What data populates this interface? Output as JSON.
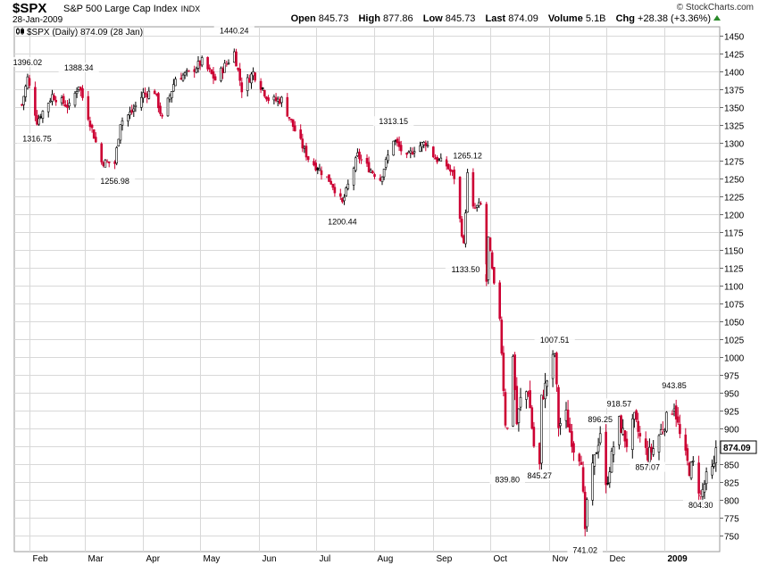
{
  "header": {
    "symbol": "$SPX",
    "description": "S&P 500 Large Cap Index",
    "exchange": "INDX",
    "brand": "© StockCharts.com",
    "date": "28-Jan-2009",
    "open_label": "Open",
    "open": "845.73",
    "high_label": "High",
    "high": "877.86",
    "low_label": "Low",
    "low": "845.73",
    "last_label": "Last",
    "last": "874.09",
    "volume_label": "Volume",
    "volume": "5.1B",
    "chg_label": "Chg",
    "chg": "+28.38 (+3.36%)"
  },
  "legend": "$SPX (Daily) 874.09 (28 Jan)",
  "colors": {
    "up": "#000000",
    "down": "#cc0033",
    "grid": "#d8d8d8",
    "last_box": "#000000"
  },
  "chart_data": {
    "type": "candlestick",
    "x_labels": [
      "Feb",
      "Mar",
      "Apr",
      "May",
      "Jun",
      "Jul",
      "Aug",
      "Sep",
      "Oct",
      "Nov",
      "Dec",
      "2009"
    ],
    "y_ticks": [
      750,
      775,
      800,
      825,
      850,
      875,
      900,
      925,
      950,
      975,
      1000,
      1025,
      1050,
      1075,
      1100,
      1125,
      1150,
      1175,
      1200,
      1225,
      1250,
      1275,
      1300,
      1325,
      1350,
      1375,
      1400,
      1425,
      1450
    ],
    "ylim": [
      728,
      1462
    ],
    "last_value": "874.09",
    "grid": true,
    "annotations": [
      {
        "text": "1396.02",
        "date": "2008-01-31",
        "value": 1396.02,
        "pos": "above"
      },
      {
        "text": "1316.75",
        "date": "2008-02-05",
        "value": 1316.75,
        "pos": "below"
      },
      {
        "text": "1388.34",
        "date": "2008-02-27",
        "value": 1388.34,
        "pos": "above"
      },
      {
        "text": "1256.98",
        "date": "2008-03-17",
        "value": 1256.98,
        "pos": "below"
      },
      {
        "text": "1440.24",
        "date": "2008-05-19",
        "value": 1440.24,
        "pos": "above"
      },
      {
        "text": "1200.44",
        "date": "2008-07-15",
        "value": 1200.44,
        "pos": "below"
      },
      {
        "text": "1313.15",
        "date": "2008-08-11",
        "value": 1313.15,
        "pos": "above"
      },
      {
        "text": "1265.12",
        "date": "2008-09-19",
        "value": 1265.12,
        "pos": "above"
      },
      {
        "text": "1133.50",
        "date": "2008-09-18",
        "value": 1133.5,
        "pos": "below"
      },
      {
        "text": "1007.51",
        "date": "2008-11-04",
        "value": 1007.51,
        "pos": "above"
      },
      {
        "text": "839.80",
        "date": "2008-10-10",
        "value": 839.8,
        "pos": "below"
      },
      {
        "text": "845.27",
        "date": "2008-10-27",
        "value": 845.27,
        "pos": "below"
      },
      {
        "text": "741.02",
        "date": "2008-11-20",
        "value": 741.02,
        "pos": "below"
      },
      {
        "text": "896.25",
        "date": "2008-11-28",
        "value": 896.25,
        "pos": "above"
      },
      {
        "text": "918.57",
        "date": "2008-12-08",
        "value": 918.57,
        "pos": "above"
      },
      {
        "text": "857.07",
        "date": "2008-12-23",
        "value": 857.07,
        "pos": "below"
      },
      {
        "text": "943.85",
        "date": "2009-01-06",
        "value": 943.85,
        "pos": "above"
      },
      {
        "text": "804.30",
        "date": "2009-01-20",
        "value": 804.3,
        "pos": "below"
      }
    ],
    "series": [
      {
        "anchors": [
          [
            "2008-01-28",
            1353
          ],
          [
            "2008-01-31",
            1390
          ],
          [
            "2008-02-05",
            1330
          ],
          [
            "2008-02-13",
            1366
          ],
          [
            "2008-02-22",
            1350
          ],
          [
            "2008-02-27",
            1381
          ],
          [
            "2008-03-04",
            1328
          ],
          [
            "2008-03-10",
            1273
          ],
          [
            "2008-03-17",
            1271
          ],
          [
            "2008-03-20",
            1329
          ],
          [
            "2008-03-26",
            1343
          ],
          [
            "2008-04-01",
            1368
          ],
          [
            "2008-04-07",
            1372
          ],
          [
            "2008-04-11",
            1333
          ],
          [
            "2008-04-18",
            1390
          ],
          [
            "2008-04-25",
            1397
          ],
          [
            "2008-05-02",
            1413
          ],
          [
            "2008-05-09",
            1388
          ],
          [
            "2008-05-19",
            1426
          ],
          [
            "2008-05-23",
            1375
          ],
          [
            "2008-05-29",
            1398
          ],
          [
            "2008-06-06",
            1361
          ],
          [
            "2008-06-10",
            1359
          ],
          [
            "2008-06-13",
            1360
          ],
          [
            "2008-06-20",
            1317
          ],
          [
            "2008-06-27",
            1278
          ],
          [
            "2008-07-03",
            1262
          ],
          [
            "2008-07-09",
            1245
          ],
          [
            "2008-07-15",
            1215
          ],
          [
            "2008-07-23",
            1282
          ],
          [
            "2008-07-29",
            1264
          ],
          [
            "2008-08-04",
            1249
          ],
          [
            "2008-08-11",
            1305
          ],
          [
            "2008-08-18",
            1278
          ],
          [
            "2008-08-22",
            1292
          ],
          [
            "2008-08-28",
            1300
          ],
          [
            "2008-09-02",
            1278
          ],
          [
            "2008-09-08",
            1268
          ],
          [
            "2008-09-12",
            1252
          ],
          [
            "2008-09-15",
            1192
          ],
          [
            "2008-09-17",
            1156
          ],
          [
            "2008-09-19",
            1255
          ],
          [
            "2008-09-22",
            1207
          ],
          [
            "2008-09-26",
            1213
          ],
          [
            "2008-09-29",
            1106
          ],
          [
            "2008-09-30",
            1166
          ],
          [
            "2008-10-03",
            1099
          ],
          [
            "2008-10-06",
            1056
          ],
          [
            "2008-10-09",
            910
          ],
          [
            "2008-10-10",
            899
          ],
          [
            "2008-10-13",
            1003
          ],
          [
            "2008-10-15",
            907
          ],
          [
            "2008-10-17",
            940
          ],
          [
            "2008-10-21",
            955
          ],
          [
            "2008-10-24",
            876
          ],
          [
            "2008-10-27",
            848
          ],
          [
            "2008-10-28",
            940
          ],
          [
            "2008-10-31",
            968
          ],
          [
            "2008-11-04",
            1005
          ],
          [
            "2008-11-06",
            904
          ],
          [
            "2008-11-10",
            919
          ],
          [
            "2008-11-14",
            873
          ],
          [
            "2008-11-18",
            859
          ],
          [
            "2008-11-20",
            752
          ],
          [
            "2008-11-21",
            800
          ],
          [
            "2008-11-25",
            857
          ],
          [
            "2008-11-28",
            896
          ],
          [
            "2008-12-01",
            816
          ],
          [
            "2008-12-05",
            876
          ],
          [
            "2008-12-08",
            909
          ],
          [
            "2008-12-12",
            879
          ],
          [
            "2008-12-16",
            913
          ],
          [
            "2008-12-19",
            887
          ],
          [
            "2008-12-23",
            863
          ],
          [
            "2008-12-26",
            872
          ],
          [
            "2008-12-31",
            903
          ],
          [
            "2009-01-06",
            934
          ],
          [
            "2009-01-09",
            890
          ],
          [
            "2009-01-14",
            842
          ],
          [
            "2009-01-16",
            850
          ],
          [
            "2009-01-20",
            805
          ],
          [
            "2009-01-23",
            831
          ],
          [
            "2009-01-27",
            845
          ],
          [
            "2009-01-28",
            874
          ]
        ]
      }
    ]
  }
}
